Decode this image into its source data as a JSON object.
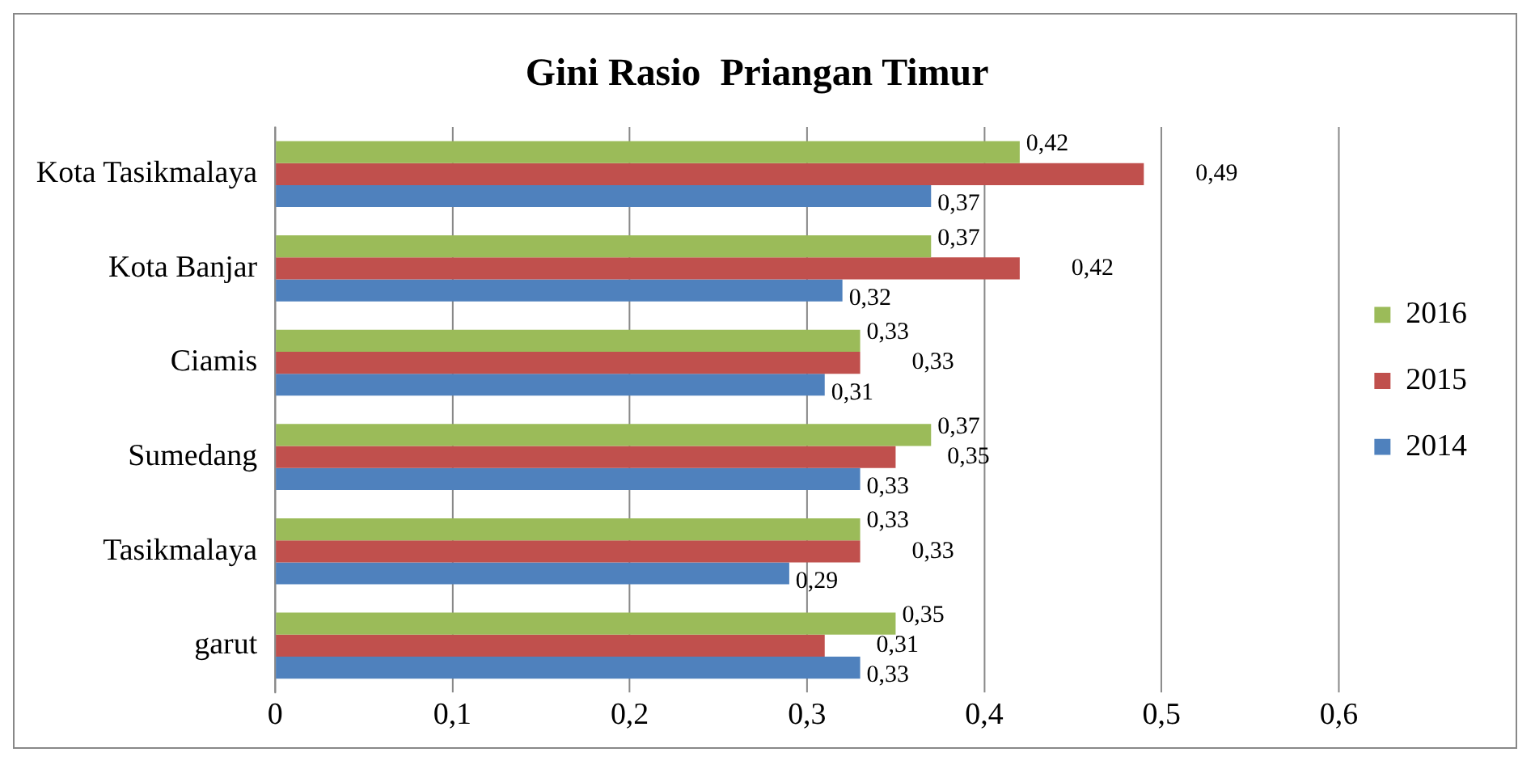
{
  "chart_data": {
    "type": "bar",
    "orientation": "horizontal",
    "title": "Gini Rasio  Priangan Timur",
    "categories": [
      "Kota Tasikmalaya",
      "Kota Banjar",
      "Ciamis",
      "Sumedang",
      "Tasikmalaya",
      "garut"
    ],
    "series": [
      {
        "name": "2016",
        "color": "#9bbb59",
        "values": [
          0.42,
          0.37,
          0.33,
          0.37,
          0.33,
          0.35
        ],
        "value_labels": [
          "0,42",
          "0,37",
          "0,33",
          "0,37",
          "0,33",
          "0,35"
        ]
      },
      {
        "name": "2015",
        "color": "#c0504d",
        "values": [
          0.49,
          0.42,
          0.33,
          0.35,
          0.33,
          0.31
        ],
        "value_labels": [
          "0,49",
          "0,42",
          "0,33",
          "0,35",
          "0,33",
          "0,31"
        ]
      },
      {
        "name": "2014",
        "color": "#4f81bd",
        "values": [
          0.37,
          0.32,
          0.31,
          0.33,
          0.29,
          0.33
        ],
        "value_labels": [
          "0,37",
          "0,32",
          "0,31",
          "0,33",
          "0,29",
          "0,33"
        ]
      }
    ],
    "xlim": [
      0,
      0.6
    ],
    "xticks": [
      0,
      {
        "value": 0.1,
        "label": "0,1"
      },
      {
        "value": 0.2,
        "label": "0,2"
      },
      {
        "value": 0.3,
        "label": "0,3"
      },
      {
        "value": 0.4,
        "label": "0,4"
      },
      {
        "value": 0.5,
        "label": "0,5"
      },
      {
        "value": 0.6,
        "label": "0,6"
      }
    ],
    "grid": "x",
    "legend": "right"
  }
}
